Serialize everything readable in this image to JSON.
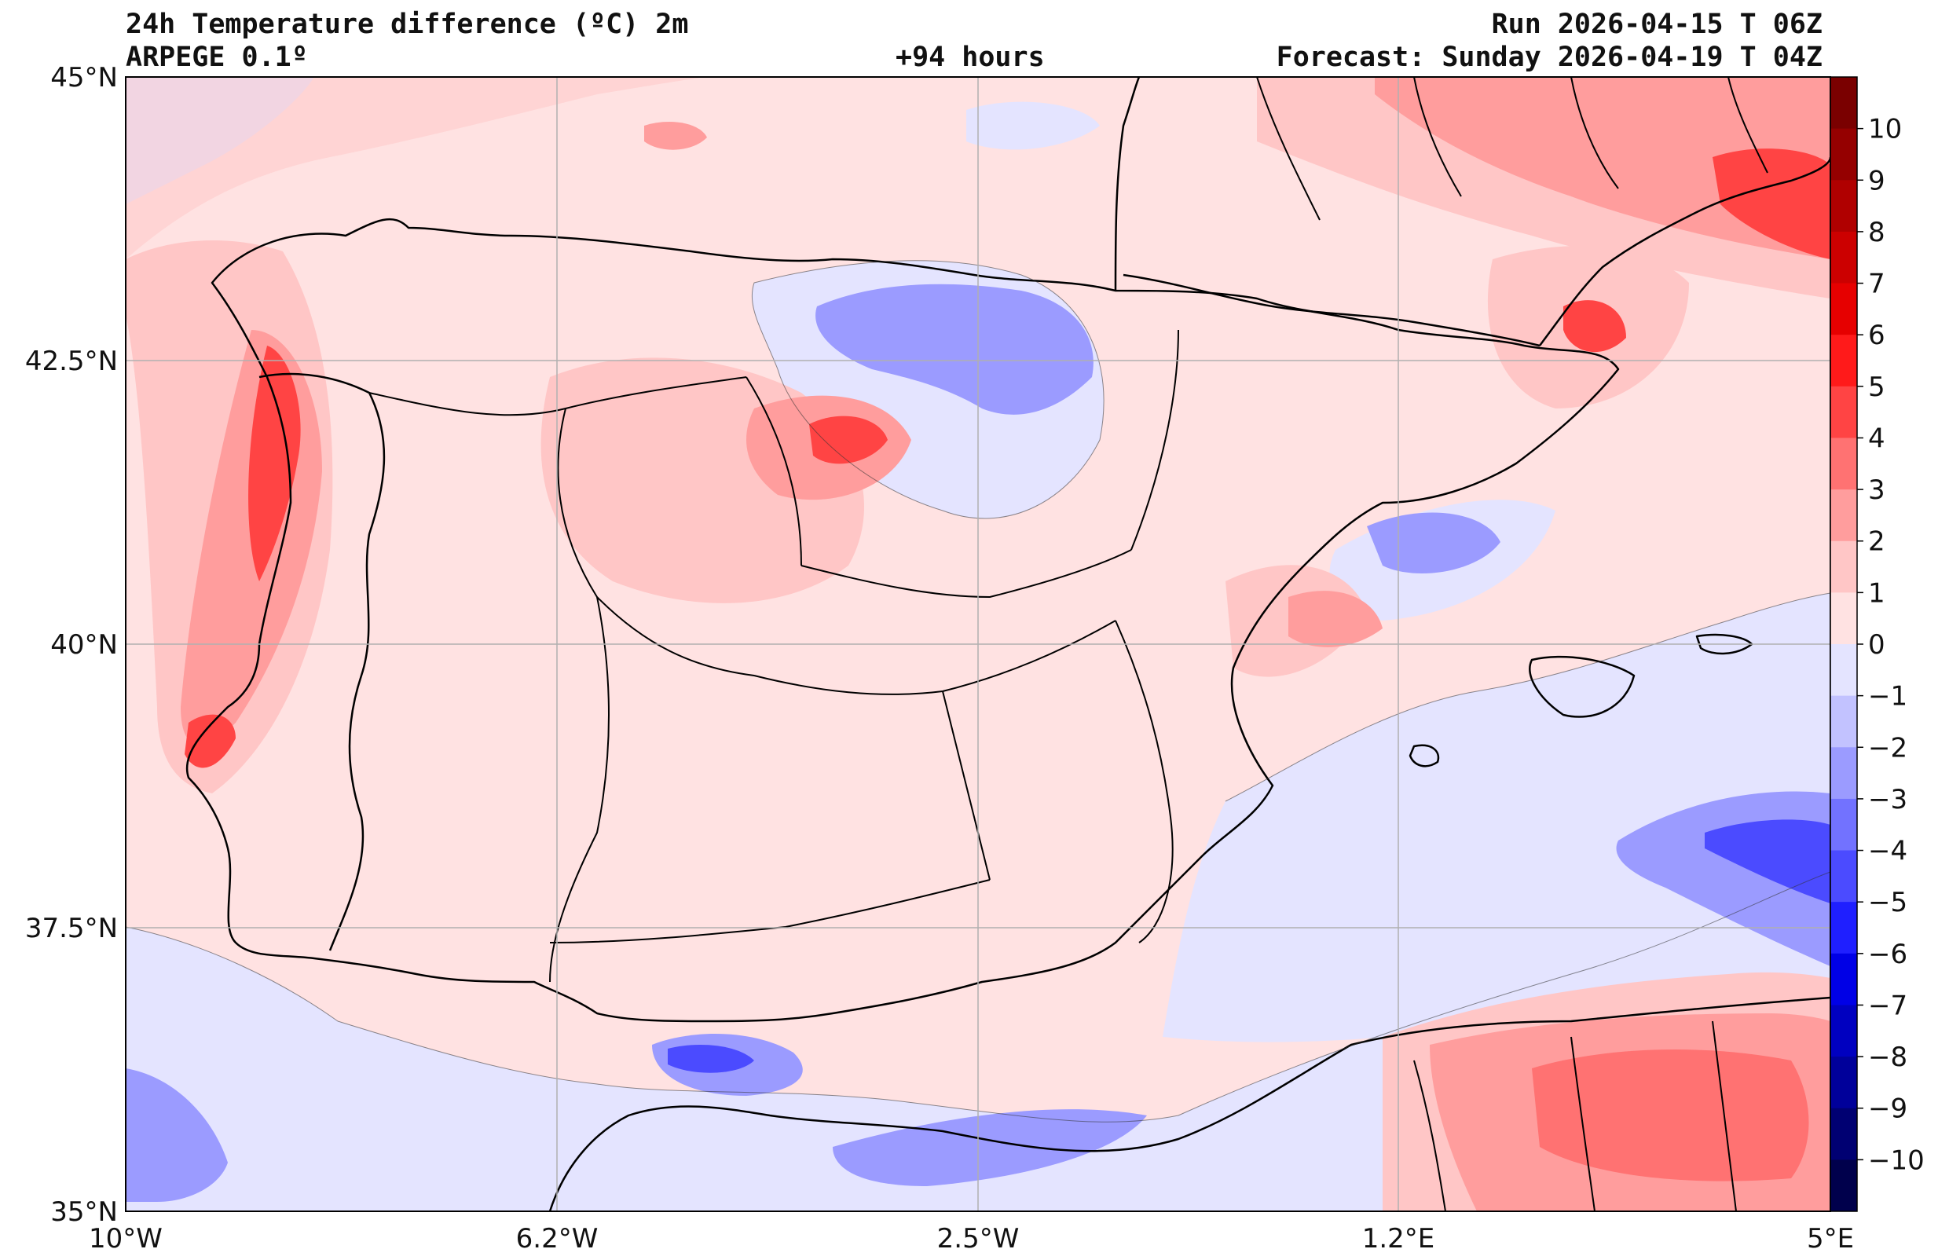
{
  "header": {
    "title": "24h Temperature difference (ºC) 2m",
    "model": "ARPEGE 0.1º",
    "lead": "+94 hours",
    "run": "Run 2026-04-15 T 06Z",
    "forecast": "Forecast: Sunday 2026-04-19 T 04Z"
  },
  "axes": {
    "lat_labels": [
      "45°N",
      "42.5°N",
      "40°N",
      "37.5°N",
      "35°N"
    ],
    "lon_labels": [
      "10°W",
      "6.2°W",
      "2.5°W",
      "1.2°E",
      "5°E"
    ],
    "lat_range": [
      35,
      45
    ],
    "lon_range": [
      -10,
      5
    ],
    "grid": true
  },
  "colorbar": {
    "labels": [
      "10",
      "9",
      "8",
      "7",
      "6",
      "5",
      "4",
      "3",
      "2",
      "1",
      "0",
      "−1",
      "−2",
      "−3",
      "−4",
      "−5",
      "−6",
      "−7",
      "−8",
      "−9",
      "−10"
    ],
    "colors": [
      "#7a0000",
      "#950000",
      "#b00000",
      "#cc0000",
      "#e60000",
      "#ff1a1a",
      "#ff4444",
      "#ff7272",
      "#ff9d9d",
      "#ffc6c6",
      "#ffe2e2",
      "#e4e4ff",
      "#c2c2ff",
      "#9b9bff",
      "#7272ff",
      "#4b4bff",
      "#1f1fff",
      "#0000e6",
      "#0000c0",
      "#00009a",
      "#000072",
      "#00004c"
    ]
  },
  "legend_colors": {
    "background": "#ffe2e2",
    "light_blue": "#e4e4ff",
    "blue": "#9b9bff",
    "red": "#ff9d9d",
    "dark_red": "#ff4444"
  }
}
